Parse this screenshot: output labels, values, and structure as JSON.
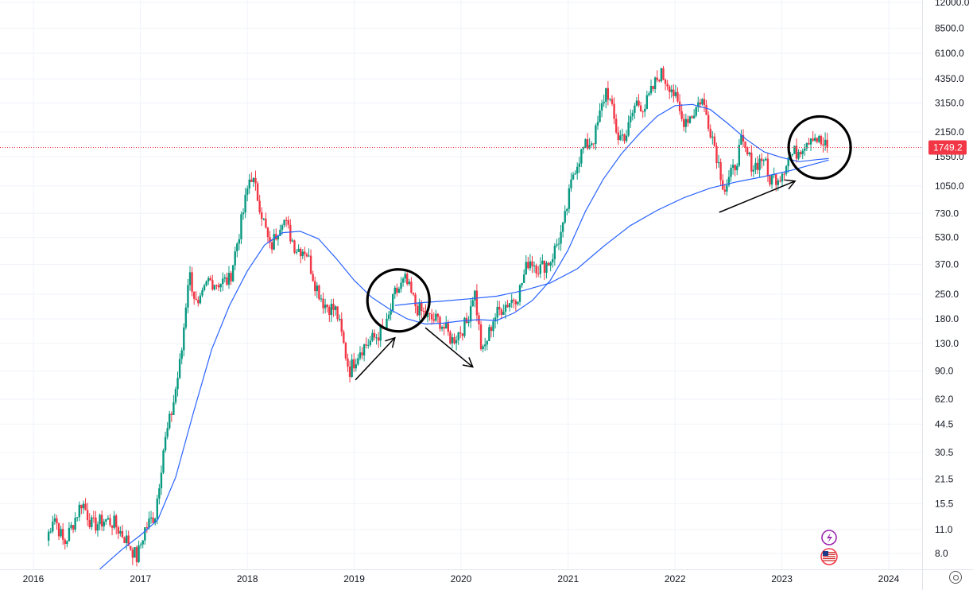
{
  "chart_data": {
    "type": "candlestick",
    "scale": "log",
    "grid": true,
    "xlim": [
      "2016-01-01",
      "2024-04-01"
    ],
    "ylim": [
      6.5,
      12500
    ],
    "x_ticks": [
      "2016",
      "2017",
      "2018",
      "2019",
      "2020",
      "2021",
      "2022",
      "2023",
      "2024"
    ],
    "y_ticks": [
      "12000.0",
      "8500.0",
      "6100.0",
      "4350.0",
      "3150.0",
      "2150.0",
      "1550.0",
      "1050.0",
      "730.0",
      "530.0",
      "370.0",
      "250.0",
      "180.0",
      "130.0",
      "90.0",
      "62.0",
      "44.5",
      "30.5",
      "21.5",
      "15.5",
      "11.0",
      "8.0"
    ],
    "last_price": "1749.2",
    "colors": {
      "up": "#089981",
      "down": "#f23645",
      "ma": "#2962ff",
      "badge": "#f23645"
    },
    "price_path": [
      [
        "2016-02-15",
        9.5
      ],
      [
        "2016-03-10",
        13.5
      ],
      [
        "2016-04-15",
        9.0
      ],
      [
        "2016-05-20",
        12.5
      ],
      [
        "2016-06-15",
        16.0
      ],
      [
        "2016-07-20",
        11.5
      ],
      [
        "2016-09-01",
        12.5
      ],
      [
        "2016-10-01",
        12.0
      ],
      [
        "2016-11-15",
        9.5
      ],
      [
        "2016-12-20",
        7.5
      ],
      [
        "2017-01-15",
        11.0
      ],
      [
        "2017-02-20",
        13.5
      ],
      [
        "2017-03-20",
        32.0
      ],
      [
        "2017-04-20",
        55.0
      ],
      [
        "2017-05-20",
        110.0
      ],
      [
        "2017-06-15",
        340.0
      ],
      [
        "2017-07-15",
        200.0
      ],
      [
        "2017-08-20",
        300.0
      ],
      [
        "2017-09-20",
        290.0
      ],
      [
        "2017-11-01",
        300.0
      ],
      [
        "2017-12-15",
        700.0
      ],
      [
        "2018-01-12",
        1250.0
      ],
      [
        "2018-02-10",
        850.0
      ],
      [
        "2018-03-20",
        450.0
      ],
      [
        "2018-05-01",
        700.0
      ],
      [
        "2018-06-15",
        460.0
      ],
      [
        "2018-07-20",
        450.0
      ],
      [
        "2018-08-20",
        290.0
      ],
      [
        "2018-09-20",
        220.0
      ],
      [
        "2018-11-01",
        200.0
      ],
      [
        "2018-12-15",
        90.0
      ],
      [
        "2019-01-20",
        120.0
      ],
      [
        "2019-03-01",
        135.0
      ],
      [
        "2019-04-20",
        160.0
      ],
      [
        "2019-05-20",
        250.0
      ],
      [
        "2019-06-25",
        300.0
      ],
      [
        "2019-08-01",
        210.0
      ],
      [
        "2019-09-15",
        180.0
      ],
      [
        "2019-10-20",
        175.0
      ],
      [
        "2019-12-01",
        135.0
      ],
      [
        "2020-01-20",
        170.0
      ],
      [
        "2020-02-15",
        270.0
      ],
      [
        "2020-03-13",
        110.0
      ],
      [
        "2020-04-20",
        180.0
      ],
      [
        "2020-05-20",
        210.0
      ],
      [
        "2020-06-20",
        230.0
      ],
      [
        "2020-07-15",
        250.0
      ],
      [
        "2020-08-20",
        400.0
      ],
      [
        "2020-09-25",
        350.0
      ],
      [
        "2020-11-01",
        390.0
      ],
      [
        "2020-12-15",
        600.0
      ],
      [
        "2021-01-20",
        1300.0
      ],
      [
        "2021-02-20",
        1700.0
      ],
      [
        "2021-04-01",
        2000.0
      ],
      [
        "2021-05-12",
        3900.0
      ],
      [
        "2021-06-20",
        2000.0
      ],
      [
        "2021-07-20",
        2100.0
      ],
      [
        "2021-08-20",
        3200.0
      ],
      [
        "2021-09-20",
        3000.0
      ],
      [
        "2021-11-10",
        4700.0
      ],
      [
        "2021-12-20",
        3900.0
      ],
      [
        "2022-01-25",
        2500.0
      ],
      [
        "2022-03-01",
        2700.0
      ],
      [
        "2022-04-01",
        3400.0
      ],
      [
        "2022-05-10",
        2000.0
      ],
      [
        "2022-06-18",
        1000.0
      ],
      [
        "2022-07-20",
        1300.0
      ],
      [
        "2022-08-15",
        1850.0
      ],
      [
        "2022-09-25",
        1350.0
      ],
      [
        "2022-11-01",
        1550.0
      ],
      [
        "2022-11-15",
        1150.0
      ],
      [
        "2022-12-25",
        1200.0
      ],
      [
        "2023-01-25",
        1550.0
      ],
      [
        "2023-02-20",
        1650.0
      ],
      [
        "2023-04-16",
        2100.0
      ],
      [
        "2023-05-20",
        1800.0
      ],
      [
        "2023-06-10",
        1749.2
      ]
    ],
    "series": [
      {
        "name": "",
        "type": "ma",
        "points": [
          [
            "2016-08-15",
            6.5
          ],
          [
            "2016-11-01",
            8.5
          ],
          [
            "2017-01-01",
            10.2
          ],
          [
            "2017-03-01",
            12.5
          ],
          [
            "2017-05-01",
            22.0
          ],
          [
            "2017-07-01",
            52.0
          ],
          [
            "2017-09-01",
            120.0
          ],
          [
            "2017-11-01",
            215.0
          ],
          [
            "2018-01-01",
            340.0
          ],
          [
            "2018-03-01",
            480.0
          ],
          [
            "2018-05-01",
            565.0
          ],
          [
            "2018-07-01",
            575.0
          ],
          [
            "2018-09-01",
            520.0
          ],
          [
            "2018-11-01",
            400.0
          ],
          [
            "2019-01-01",
            300.0
          ],
          [
            "2019-03-01",
            240.0
          ],
          [
            "2019-05-01",
            205.0
          ],
          [
            "2019-07-01",
            180.0
          ],
          [
            "2019-09-01",
            168.0
          ],
          [
            "2019-11-01",
            170.0
          ],
          [
            "2020-01-01",
            175.0
          ],
          [
            "2020-03-01",
            178.0
          ],
          [
            "2020-05-01",
            176.0
          ],
          [
            "2020-07-01",
            195.0
          ],
          [
            "2020-09-01",
            230.0
          ],
          [
            "2020-11-01",
            300.0
          ],
          [
            "2021-01-01",
            450.0
          ],
          [
            "2021-03-01",
            750.0
          ],
          [
            "2021-05-01",
            1150.0
          ],
          [
            "2021-07-01",
            1600.0
          ],
          [
            "2021-09-01",
            2100.0
          ],
          [
            "2021-11-01",
            2650.0
          ],
          [
            "2022-01-01",
            3050.0
          ],
          [
            "2022-03-01",
            3100.0
          ],
          [
            "2022-05-01",
            2900.0
          ],
          [
            "2022-07-01",
            2400.0
          ],
          [
            "2022-09-01",
            1950.0
          ],
          [
            "2022-11-01",
            1650.0
          ],
          [
            "2023-01-01",
            1530.0
          ],
          [
            "2023-03-01",
            1450.0
          ],
          [
            "2023-05-01",
            1490.0
          ],
          [
            "2023-06-10",
            1510.0
          ]
        ]
      },
      {
        "name": "",
        "type": "ma",
        "points": [
          [
            "2019-05-20",
            215.0
          ],
          [
            "2019-08-01",
            222.0
          ],
          [
            "2019-11-01",
            228.0
          ],
          [
            "2020-02-01",
            235.0
          ],
          [
            "2020-05-01",
            243.0
          ],
          [
            "2020-08-01",
            262.0
          ],
          [
            "2020-11-01",
            290.0
          ],
          [
            "2021-02-01",
            350.0
          ],
          [
            "2021-05-01",
            470.0
          ],
          [
            "2021-08-01",
            620.0
          ],
          [
            "2021-11-01",
            760.0
          ],
          [
            "2022-02-01",
            900.0
          ],
          [
            "2022-05-01",
            1020.0
          ],
          [
            "2022-08-01",
            1110.0
          ],
          [
            "2022-11-01",
            1190.0
          ],
          [
            "2023-02-01",
            1290.0
          ],
          [
            "2023-06-10",
            1480.0
          ]
        ]
      }
    ],
    "annotations": [
      {
        "type": "circle",
        "x": "2019-06-01",
        "y": 230
      },
      {
        "type": "circle",
        "x": "2023-05-10",
        "y": 1750
      },
      {
        "type": "arrow",
        "from": [
          "2019-01-05",
          80
        ],
        "to": [
          "2019-05-20",
          140
        ]
      },
      {
        "type": "arrow",
        "from": [
          "2019-09-01",
          160
        ],
        "to": [
          "2020-02-10",
          95
        ]
      },
      {
        "type": "arrow",
        "from": [
          "2022-06-01",
          740
        ],
        "to": [
          "2023-02-15",
          1120
        ]
      }
    ]
  },
  "icons": [
    "lightning-icon",
    "us-flag-icon",
    "settings-icon"
  ]
}
